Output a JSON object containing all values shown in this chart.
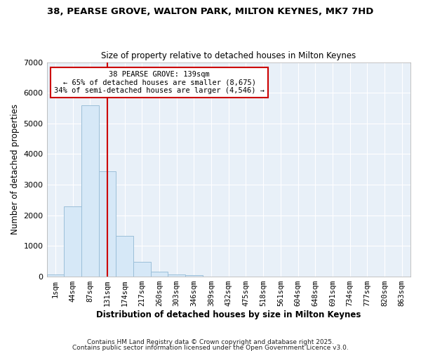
{
  "title_line1": "38, PEARSE GROVE, WALTON PARK, MILTON KEYNES, MK7 7HD",
  "title_line2": "Size of property relative to detached houses in Milton Keynes",
  "xlabel": "Distribution of detached houses by size in Milton Keynes",
  "ylabel": "Number of detached properties",
  "bar_labels": [
    "1sqm",
    "44sqm",
    "87sqm",
    "131sqm",
    "174sqm",
    "217sqm",
    "260sqm",
    "303sqm",
    "346sqm",
    "389sqm",
    "432sqm",
    "475sqm",
    "518sqm",
    "561sqm",
    "604sqm",
    "648sqm",
    "691sqm",
    "734sqm",
    "777sqm",
    "820sqm",
    "863sqm"
  ],
  "bar_values": [
    75,
    2300,
    5600,
    3450,
    1320,
    490,
    160,
    75,
    50,
    0,
    0,
    0,
    0,
    0,
    0,
    0,
    0,
    0,
    0,
    0,
    0
  ],
  "bar_color": "#d6e8f7",
  "bar_edgecolor": "#9bbfd9",
  "vline_x": 3.0,
  "vline_color": "#cc0000",
  "annotation_text": "38 PEARSE GROVE: 139sqm\n← 65% of detached houses are smaller (8,675)\n34% of semi-detached houses are larger (4,546) →",
  "annotation_box_facecolor": "#ffffff",
  "annotation_box_edgecolor": "#cc0000",
  "ylim": [
    0,
    7000
  ],
  "yticks": [
    0,
    1000,
    2000,
    3000,
    4000,
    5000,
    6000,
    7000
  ],
  "plot_bg": "#e8f0f8",
  "fig_bg": "#ffffff",
  "grid_color": "#ffffff",
  "footer_line1": "Contains HM Land Registry data © Crown copyright and database right 2025.",
  "footer_line2": "Contains public sector information licensed under the Open Government Licence v3.0."
}
